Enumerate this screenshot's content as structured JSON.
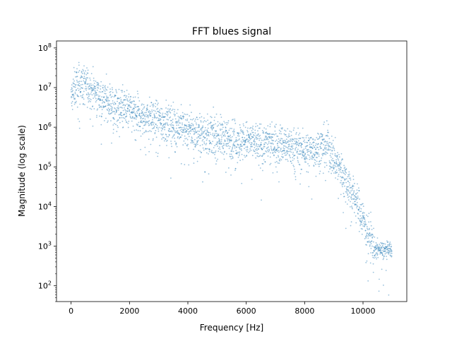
{
  "chart_data": {
    "type": "scatter",
    "title": "FFT blues signal",
    "xlabel": "Frequency [Hz]",
    "ylabel": "Magnitude (log scale)",
    "xlim": [
      -500,
      11500
    ],
    "ylim": [
      40,
      150000000
    ],
    "yscale": "log",
    "grid": false,
    "marker_color": "#1f77b4",
    "x_ticks": [
      0,
      2000,
      4000,
      6000,
      8000,
      10000
    ],
    "x_tick_labels": [
      "0",
      "2000",
      "4000",
      "6000",
      "8000",
      "10000"
    ],
    "y_tick_exponents": [
      2,
      3,
      4,
      5,
      6,
      7,
      8
    ],
    "y_tick_labels": [
      {
        "base": "10",
        "exp": "2"
      },
      {
        "base": "10",
        "exp": "3"
      },
      {
        "base": "10",
        "exp": "4"
      },
      {
        "base": "10",
        "exp": "5"
      },
      {
        "base": "10",
        "exp": "6"
      },
      {
        "base": "10",
        "exp": "7"
      },
      {
        "base": "10",
        "exp": "8"
      }
    ],
    "series": [
      {
        "x": [
          0,
          100,
          200,
          300,
          400,
          500,
          600,
          700,
          800,
          900,
          1000,
          1200,
          1500,
          1800,
          2000,
          2300,
          2600,
          3000,
          3500,
          4000,
          4500,
          5000,
          5500,
          6000,
          6500,
          7000,
          7500,
          8000,
          8500,
          8800,
          9000,
          9200,
          9400,
          9600,
          9800,
          10000,
          10200,
          10400,
          10600,
          10800,
          10990
        ],
        "y": [
          5000000,
          9000000,
          11000000,
          12000000,
          13000000,
          11000000,
          10000000,
          9000000,
          8000000,
          7000000,
          6000000,
          5000000,
          3500000,
          3000000,
          2500000,
          2000000,
          1800000,
          1500000,
          1200000,
          900000,
          700000,
          600000,
          500000,
          450000,
          400000,
          400000,
          350000,
          250000,
          300000,
          380000,
          150000,
          100000,
          50000,
          25000,
          12000,
          5000,
          2000,
          900,
          800,
          800,
          800
        ]
      }
    ]
  }
}
